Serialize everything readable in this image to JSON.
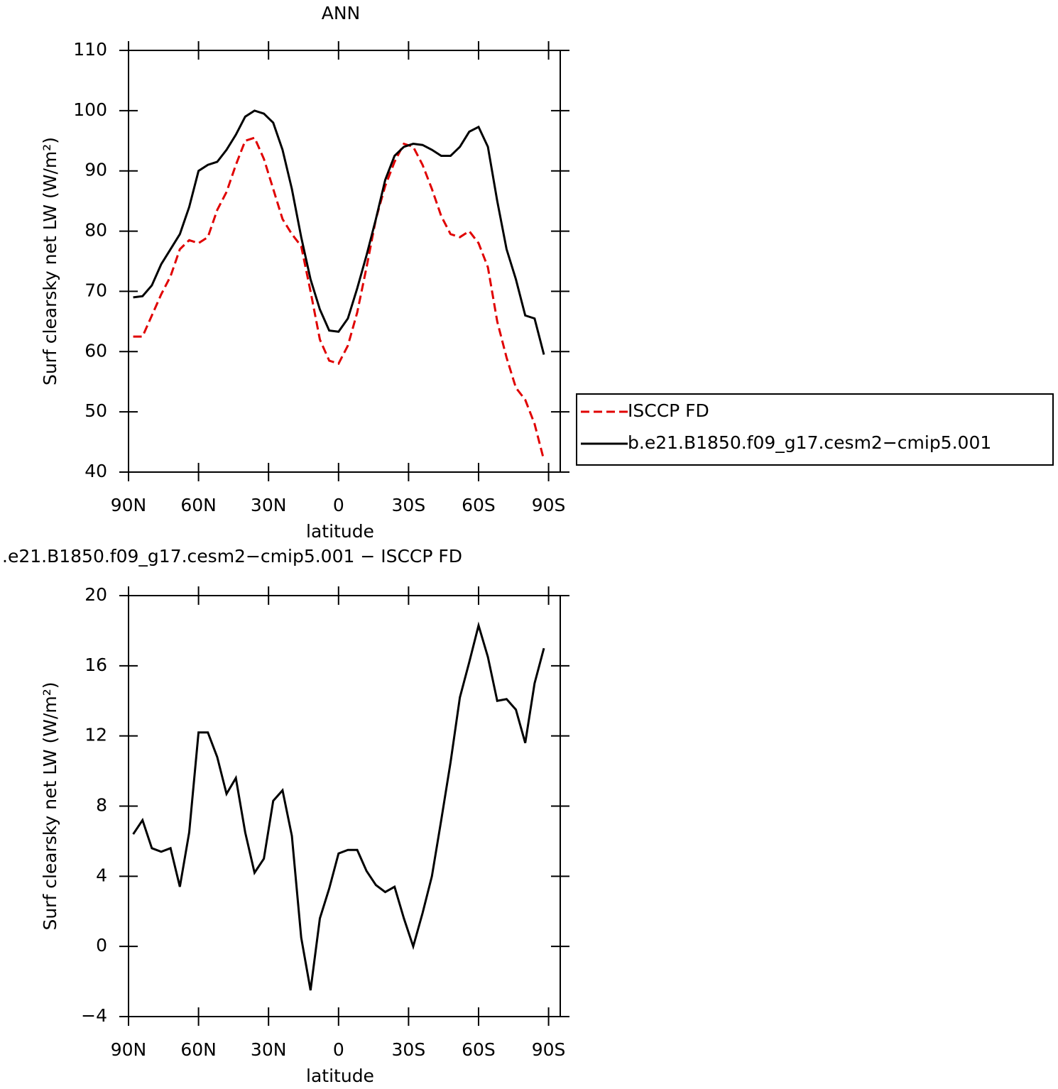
{
  "chart_data": [
    {
      "type": "line",
      "title": "ANN",
      "x_label": "latitude",
      "y_label": "Surf clearsky net LW (W/m²)",
      "x": [
        88,
        84,
        80,
        76,
        72,
        68,
        64,
        60,
        56,
        52,
        48,
        44,
        40,
        36,
        32,
        28,
        24,
        20,
        16,
        12,
        8,
        4,
        0,
        -4,
        -8,
        -12,
        -16,
        -20,
        -24,
        -28,
        -32,
        -36,
        -40,
        -44,
        -48,
        -52,
        -56,
        -60,
        -64,
        -68,
        -72,
        -76,
        -80,
        -84,
        -88
      ],
      "series": [
        {
          "name": "ISCCP FD",
          "color": "#e00000",
          "dashed": true,
          "values": [
            62.5,
            62.5,
            66,
            69.5,
            72.5,
            77,
            78.5,
            78,
            79,
            83.5,
            86.5,
            91,
            95,
            95.5,
            92,
            87,
            82,
            79.5,
            77.5,
            70,
            62,
            58.5,
            58,
            61,
            66.5,
            74,
            82,
            87.5,
            91.5,
            94.5,
            94,
            91,
            87,
            82.5,
            79.5,
            79,
            80,
            78,
            74,
            65,
            59,
            54,
            52,
            48,
            42
          ]
        },
        {
          "name": "b.e21.B1850.f09_g17.cesm2−cmip5.001",
          "color": "#000000",
          "dashed": false,
          "values": [
            69,
            69.2,
            71,
            74.5,
            77,
            79.5,
            84,
            90,
            91,
            91.5,
            93.5,
            96,
            99,
            100,
            99.5,
            98,
            93.5,
            87,
            79,
            72,
            67,
            63.5,
            63.3,
            65.5,
            70.5,
            76,
            82,
            88.5,
            92.5,
            94,
            94.5,
            94.3,
            93.5,
            92.5,
            92.5,
            94,
            96.5,
            97.3,
            94,
            85,
            77,
            72,
            66,
            65.5,
            59.5
          ]
        }
      ],
      "xlim": [
        90,
        -95
      ],
      "ylim": [
        40,
        110
      ],
      "xticks": [
        {
          "value": 90,
          "label": "90N"
        },
        {
          "value": 60,
          "label": "60N"
        },
        {
          "value": 30,
          "label": "30N"
        },
        0,
        {
          "value": -30,
          "label": "30S"
        },
        {
          "value": -60,
          "label": "60S"
        },
        {
          "value": -90,
          "label": "90S"
        }
      ],
      "yticks": [
        40,
        50,
        60,
        70,
        80,
        90,
        100,
        110
      ],
      "legend": "right"
    },
    {
      "type": "line",
      "title": ".e21.B1850.f09_g17.cesm2−cmip5.001 − ISCCP FD",
      "x_label": "latitude",
      "y_label": "Surf clearsky net LW (W/m²)",
      "x": [
        88,
        84,
        80,
        76,
        72,
        68,
        64,
        60,
        56,
        52,
        48,
        44,
        40,
        36,
        32,
        28,
        24,
        20,
        16,
        12,
        8,
        4,
        0,
        -4,
        -8,
        -12,
        -16,
        -20,
        -24,
        -28,
        -32,
        -36,
        -40,
        -44,
        -48,
        -52,
        -56,
        -60,
        -64,
        -68,
        -72,
        -76,
        -80,
        -84,
        -88
      ],
      "series": [
        {
          "color": "#000000",
          "dashed": false,
          "values": [
            6.4,
            7.2,
            5.6,
            5.4,
            5.6,
            3.4,
            6.5,
            12.2,
            12.2,
            10.8,
            8.7,
            9.6,
            6.5,
            4.2,
            5,
            8.3,
            8.9,
            6.3,
            0.5,
            -2.5,
            1.6,
            3.3,
            5.3,
            5.5,
            5.5,
            4.3,
            3.5,
            3.1,
            3.4,
            1.6,
            0,
            1.9,
            4,
            7.2,
            10.5,
            14.2,
            16.2,
            18.3,
            16.5,
            14,
            14.1,
            13.5,
            11.6,
            15,
            17
          ]
        }
      ],
      "xlim": [
        90,
        -95
      ],
      "ylim": [
        -4,
        20
      ],
      "xticks": [
        {
          "value": 90,
          "label": "90N"
        },
        {
          "value": 60,
          "label": "60N"
        },
        {
          "value": 30,
          "label": "30N"
        },
        0,
        {
          "value": -30,
          "label": "30S"
        },
        {
          "value": -60,
          "label": "60S"
        },
        {
          "value": -90,
          "label": "90S"
        }
      ],
      "yticks": [
        {
          "value": -4,
          "label": "−4"
        },
        0,
        4,
        8,
        12,
        16,
        20
      ]
    }
  ]
}
